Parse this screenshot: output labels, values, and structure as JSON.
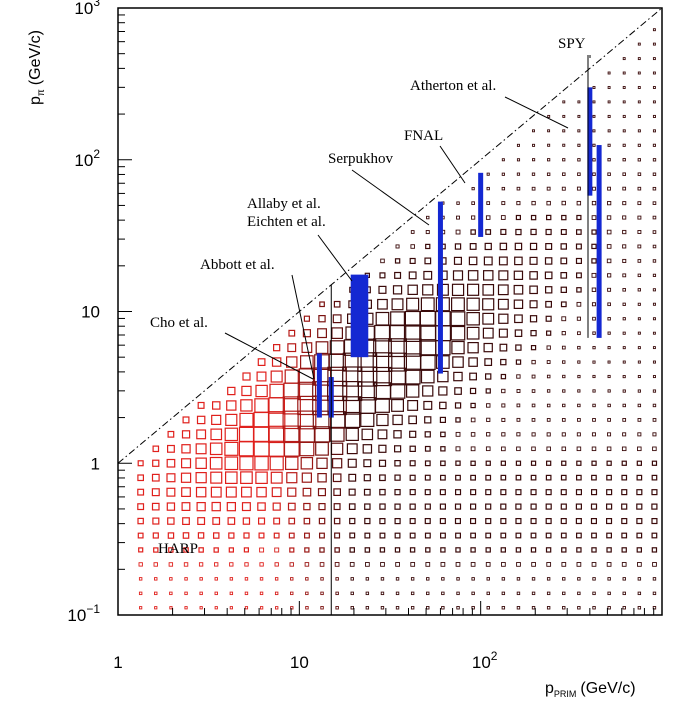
{
  "chart_data": {
    "type": "scatter",
    "xscale": "log",
    "yscale": "log",
    "xlim": [
      1,
      1000
    ],
    "ylim": [
      0.1,
      1000
    ],
    "xlabel": "p",
    "xlabel_sub": "PRIM",
    "xlabel_unit": "(GeV/c)",
    "ylabel": "p",
    "ylabel_sub": "π",
    "ylabel_unit": "(GeV/c)",
    "x_ticks": [
      {
        "value": 1,
        "label": "1"
      },
      {
        "value": 10,
        "label": "10"
      },
      {
        "value": 100,
        "label": "10",
        "exp": "2"
      }
    ],
    "y_ticks": [
      {
        "value": 0.1,
        "label": "10",
        "exp": "−1"
      },
      {
        "value": 1,
        "label": "1"
      },
      {
        "value": 10,
        "label": "10"
      },
      {
        "value": 100,
        "label": "10",
        "exp": "2"
      },
      {
        "value": 1000,
        "label": "10",
        "exp": "3"
      }
    ],
    "kinematic_limit": {
      "style": "dash-dot",
      "relation": "p_pi = p_prim"
    },
    "distribution": {
      "style": "box",
      "x_range": [
        1,
        1000
      ],
      "y_range": [
        0.1,
        1000
      ],
      "colors": {
        "low_x": "#e0201c",
        "high_x": "#3a0a0a"
      }
    },
    "experiments": [
      {
        "label": "HARP",
        "label_lines": [
          "HARP"
        ],
        "x": [
          12,
          15
        ],
        "y_range": [
          0.1,
          15
        ],
        "style": "line"
      },
      {
        "label": "Cho et al.",
        "label_lines": [
          "Cho et al."
        ],
        "x": [
          15
        ],
        "y_range": [
          2.0,
          3.7
        ],
        "style": "band"
      },
      {
        "label": "Abbott et al.",
        "label_lines": [
          "Abbott et al."
        ],
        "x": [
          12.9
        ],
        "y_range": [
          2.0,
          5.3
        ],
        "style": "band"
      },
      {
        "label": "Allaby et al. / Eichten et al.",
        "label_lines": [
          "Allaby et al.",
          "Eichten et al."
        ],
        "x": [
          19.2,
          24
        ],
        "y_range": [
          5.0,
          17.5
        ],
        "style": "wide-band"
      },
      {
        "label": "Serpukhov",
        "label_lines": [
          "Serpukhov"
        ],
        "x": [
          60
        ],
        "y_range": [
          3.9,
          53
        ],
        "style": "band"
      },
      {
        "label": "FNAL",
        "label_lines": [
          "FNAL"
        ],
        "x": [
          100
        ],
        "y_range": [
          31,
          82
        ],
        "style": "band"
      },
      {
        "label": "Atherton et al.",
        "label_lines": [
          "Atherton et al."
        ],
        "x": [
          400
        ],
        "y_range": [
          58,
          300
        ],
        "style": "band"
      },
      {
        "label": "SPY",
        "label_lines": [
          "SPY"
        ],
        "x": [
          450
        ],
        "y_range": [
          6.7,
          125
        ],
        "style": "band"
      }
    ],
    "band_color": "#1428d2"
  }
}
